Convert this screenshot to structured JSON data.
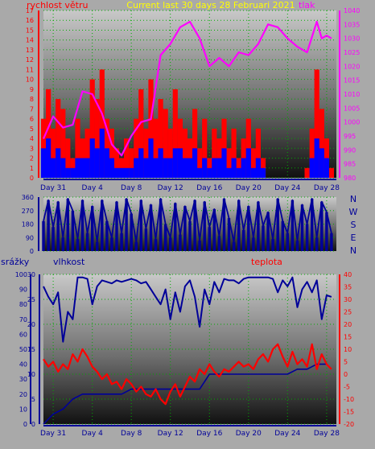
{
  "caption": "Current last 30 days 28 Februari 2021",
  "colors": {
    "background": "#a9a9a9",
    "wind": "#ff0000",
    "gust": "#0000ff",
    "pressure": "#ff00ff",
    "caption": "#ffff00",
    "direction": "#000099",
    "humidity": "#000099",
    "temperature": "#ff0000",
    "precip": "#000099",
    "grid": "#00aa00"
  },
  "x_ticks": [
    "Day 31",
    "Day 4",
    "Day 8",
    "Day 12",
    "Day 16",
    "Day 20",
    "Day 24",
    "Day 28"
  ],
  "chart_data": [
    {
      "id": "wind-pressure",
      "type": "line",
      "labels": {
        "wind": "rychlost větru",
        "pressure": "tlak"
      },
      "left_ticks": [
        "0",
        "1",
        "2",
        "3",
        "4",
        "5",
        "6",
        "7",
        "8",
        "9",
        "10",
        "11",
        "12",
        "13",
        "14",
        "15",
        "16",
        "17"
      ],
      "right_ticks": [
        "980",
        "985",
        "990",
        "995",
        "1000",
        "1005",
        "1010",
        "1015",
        "1020",
        "1025",
        "1030",
        "1035",
        "1040"
      ],
      "ylim_left": [
        0,
        17
      ],
      "ylim_right": [
        980,
        1040
      ],
      "series": [
        {
          "name": "rychlost větru",
          "axis": "left",
          "color": "#ff0000",
          "x": [
            0,
            0.5,
            1,
            1.5,
            2,
            2.5,
            3,
            3.5,
            4,
            4.5,
            5,
            5.5,
            6,
            6.5,
            7,
            7.5,
            8,
            8.5,
            9,
            9.5,
            10,
            10.5,
            11,
            11.5,
            12,
            12.5,
            13,
            13.5,
            14,
            14.5,
            15,
            15.5,
            16,
            16.5,
            17,
            17.5,
            18,
            18.5,
            19,
            19.5,
            20,
            20.5,
            21,
            21.5,
            22,
            22.5,
            23,
            23.5,
            24,
            24.5,
            25,
            25.5,
            26,
            26.5,
            27,
            27.5,
            28,
            28.5,
            29,
            29.5
          ],
          "values": [
            6,
            9,
            5,
            8,
            7,
            4,
            2,
            6,
            4,
            5,
            10,
            8,
            11,
            6,
            5,
            3,
            2,
            4,
            3,
            6,
            9,
            5,
            10,
            6,
            8,
            7,
            5,
            9,
            6,
            5,
            4,
            7,
            3,
            6,
            2,
            5,
            4,
            6,
            3,
            5,
            2,
            4,
            6,
            3,
            5,
            2,
            0,
            0,
            0,
            0,
            0,
            0,
            0,
            0,
            1,
            5,
            11,
            7,
            4,
            1
          ]
        },
        {
          "name": "náraz",
          "axis": "left",
          "color": "#0000ff",
          "x": [
            0,
            0.5,
            1,
            1.5,
            2,
            2.5,
            3,
            3.5,
            4,
            4.5,
            5,
            5.5,
            6,
            6.5,
            7,
            7.5,
            8,
            8.5,
            9,
            9.5,
            10,
            10.5,
            11,
            11.5,
            12,
            12.5,
            13,
            13.5,
            14,
            14.5,
            15,
            15.5,
            16,
            16.5,
            17,
            17.5,
            18,
            18.5,
            19,
            19.5,
            20,
            20.5,
            21,
            21.5,
            22,
            22.5,
            23,
            23.5,
            24,
            24.5,
            25,
            25.5,
            26,
            26.5,
            27,
            27.5,
            28,
            28.5,
            29,
            29.5
          ],
          "values": [
            3,
            4,
            2,
            3,
            2,
            1,
            1,
            2,
            2,
            2,
            4,
            3,
            5,
            3,
            2,
            1,
            1,
            1,
            1,
            2,
            3,
            2,
            4,
            2,
            3,
            2,
            2,
            3,
            3,
            2,
            2,
            3,
            1,
            2,
            1,
            2,
            2,
            3,
            1,
            2,
            1,
            2,
            3,
            1,
            2,
            1,
            0,
            0,
            0,
            0,
            0,
            0,
            0,
            0,
            0,
            2,
            4,
            3,
            2,
            0
          ]
        },
        {
          "name": "tlak",
          "axis": "right",
          "color": "#ff00ff",
          "x": [
            0,
            1,
            2,
            3,
            4,
            5,
            6,
            7,
            8,
            9,
            10,
            11,
            12,
            13,
            14,
            15,
            16,
            17,
            18,
            19,
            20,
            21,
            22,
            23,
            24,
            25,
            26,
            27,
            28,
            28.5,
            29,
            29.5
          ],
          "values": [
            994,
            1002,
            998,
            999,
            1011,
            1010,
            1003,
            992,
            988,
            995,
            1000,
            1001,
            1024,
            1028,
            1034,
            1036,
            1030,
            1020,
            1023,
            1020,
            1025,
            1024,
            1028,
            1035,
            1034,
            1030,
            1027,
            1025,
            1036,
            1030,
            1031,
            1030
          ]
        }
      ]
    },
    {
      "id": "direction",
      "type": "line",
      "left_ticks": [
        "0",
        "90",
        "180",
        "270",
        "360"
      ],
      "right_labels": [
        "N",
        "W",
        "S",
        "E",
        "N"
      ],
      "ylim": [
        0,
        360
      ],
      "series": [
        {
          "name": "směr větru",
          "color": "#000099",
          "x": [
            0,
            0.5,
            1,
            1.5,
            2,
            2.5,
            3,
            3.5,
            4,
            4.5,
            5,
            5.5,
            6,
            6.5,
            7,
            7.5,
            8,
            8.5,
            9,
            9.5,
            10,
            10.5,
            11,
            11.5,
            12,
            12.5,
            13,
            13.5,
            14,
            14.5,
            15,
            15.5,
            16,
            16.5,
            17,
            17.5,
            18,
            18.5,
            19,
            19.5,
            20,
            20.5,
            21,
            21.5,
            22,
            22.5,
            23,
            23.5,
            24,
            24.5,
            25,
            25.5,
            26,
            26.5,
            27,
            27.5,
            28,
            28.5,
            29,
            29.5
          ],
          "values": [
            200,
            340,
            160,
            330,
            90,
            350,
            270,
            80,
            340,
            120,
            300,
            60,
            340,
            200,
            90,
            330,
            120,
            350,
            250,
            60,
            340,
            150,
            310,
            80,
            350,
            180,
            90,
            320,
            110,
            300,
            200,
            340,
            70,
            330,
            160,
            280,
            100,
            350,
            220,
            60,
            340,
            140,
            300,
            90,
            330,
            170,
            260,
            80,
            350,
            200,
            120,
            340,
            70,
            310,
            180,
            350,
            90,
            330,
            260,
            120
          ]
        }
      ]
    },
    {
      "id": "humidity-temperature",
      "type": "line",
      "labels": {
        "precip": "srážky",
        "humidity": "vlhkost",
        "temperature": "teplota"
      },
      "precip_ticks": [
        "0",
        "5",
        "10",
        "15",
        "20",
        "25",
        "30"
      ],
      "humidity_ticks": [
        "0",
        "10",
        "20",
        "30",
        "40",
        "50",
        "60",
        "70",
        "80",
        "90",
        "100"
      ],
      "temp_ticks": [
        "40",
        "35",
        "30",
        "25",
        "20",
        "15",
        "10",
        "5",
        "0",
        "-5",
        "-10",
        "-15",
        "-20"
      ],
      "ylim_humidity": [
        0,
        100
      ],
      "ylim_precip": [
        0,
        30
      ],
      "ylim_temperature": [
        -20,
        40
      ],
      "series": [
        {
          "name": "vlhkost",
          "axis": "humidity",
          "color": "#000099",
          "x": [
            0,
            0.5,
            1,
            1.5,
            2,
            2.5,
            3,
            3.5,
            4,
            4.5,
            5,
            5.5,
            6,
            6.5,
            7,
            7.5,
            8,
            8.5,
            9,
            9.5,
            10,
            10.5,
            11,
            11.5,
            12,
            12.5,
            13,
            13.5,
            14,
            14.5,
            15,
            15.5,
            16,
            16.5,
            17,
            17.5,
            18,
            18.5,
            19,
            19.5,
            20,
            20.5,
            21,
            21.5,
            22,
            22.5,
            23,
            23.5,
            24,
            24.5,
            25,
            25.5,
            26,
            26.5,
            27,
            27.5,
            28,
            28.5,
            29,
            29.5
          ],
          "values": [
            92,
            85,
            80,
            88,
            55,
            75,
            70,
            98,
            98,
            97,
            80,
            92,
            96,
            95,
            94,
            96,
            95,
            96,
            97,
            96,
            94,
            95,
            90,
            85,
            80,
            90,
            70,
            88,
            75,
            92,
            96,
            85,
            65,
            90,
            80,
            95,
            88,
            97,
            96,
            96,
            94,
            97,
            98,
            98,
            98,
            98,
            98,
            97,
            88,
            96,
            92,
            98,
            78,
            90,
            95,
            88,
            96,
            70,
            86,
            85
          ]
        },
        {
          "name": "teplota",
          "axis": "temperature",
          "color": "#ff0000",
          "x": [
            0,
            0.5,
            1,
            1.5,
            2,
            2.5,
            3,
            3.5,
            4,
            4.5,
            5,
            5.5,
            6,
            6.5,
            7,
            7.5,
            8,
            8.5,
            9,
            9.5,
            10,
            10.5,
            11,
            11.5,
            12,
            12.5,
            13,
            13.5,
            14,
            14.5,
            15,
            15.5,
            16,
            16.5,
            17,
            17.5,
            18,
            18.5,
            19,
            19.5,
            20,
            20.5,
            21,
            21.5,
            22,
            22.5,
            23,
            23.5,
            24,
            24.5,
            25,
            25.5,
            26,
            26.5,
            27,
            27.5,
            28,
            28.5,
            29,
            29.5
          ],
          "values": [
            6,
            3,
            5,
            1,
            4,
            2,
            8,
            5,
            10,
            7,
            3,
            1,
            -2,
            0,
            -4,
            -3,
            -6,
            -2,
            -4,
            -7,
            -5,
            -8,
            -9,
            -6,
            -10,
            -12,
            -7,
            -4,
            -9,
            -5,
            -1,
            -3,
            2,
            0,
            4,
            1,
            -1,
            2,
            1,
            3,
            5,
            3,
            4,
            2,
            6,
            8,
            5,
            10,
            12,
            7,
            3,
            9,
            4,
            6,
            3,
            12,
            2,
            8,
            4,
            2
          ]
        },
        {
          "name": "srážky",
          "axis": "precip",
          "color": "#000099",
          "x": [
            0,
            1,
            2,
            3,
            4,
            5,
            6,
            7,
            8,
            9,
            10,
            11,
            12,
            13,
            14,
            15,
            16,
            17,
            18,
            19,
            20,
            21,
            22,
            23,
            24,
            25,
            26,
            27,
            28,
            29
          ],
          "values": [
            0,
            2,
            3,
            5,
            6,
            6,
            6,
            6,
            6,
            7,
            7,
            7,
            7,
            7,
            7,
            7,
            7,
            10,
            10,
            10,
            10,
            10,
            10,
            10,
            10,
            10,
            11,
            11,
            12,
            12
          ]
        }
      ]
    }
  ]
}
